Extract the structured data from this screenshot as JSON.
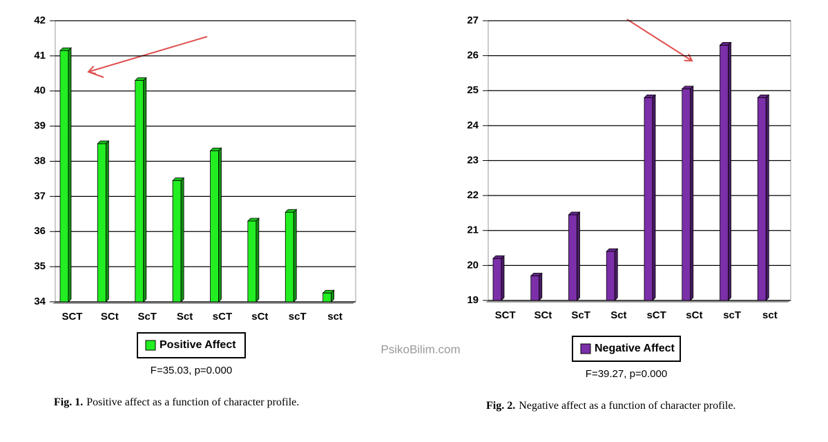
{
  "chart_data": [
    {
      "type": "bar",
      "categories": [
        "SCT",
        "SCt",
        "ScT",
        "Sct",
        "sCT",
        "sCt",
        "scT",
        "sct"
      ],
      "series": [
        {
          "name": "Positive Affect",
          "color": "#22ee22",
          "values": [
            41.15,
            38.5,
            40.3,
            37.45,
            38.3,
            36.3,
            36.55,
            34.25
          ]
        }
      ],
      "ylim": [
        34,
        42
      ],
      "yticks": [
        34,
        35,
        36,
        37,
        38,
        39,
        40,
        41,
        42
      ],
      "grid": true,
      "note": "F=35.03, p=0.000",
      "caption_label": "Fig. 1.",
      "caption": "Positive affect as a function of character profile."
    },
    {
      "type": "bar",
      "categories": [
        "SCT",
        "SCt",
        "ScT",
        "Sct",
        "sCT",
        "sCt",
        "scT",
        "sct"
      ],
      "series": [
        {
          "name": "Negative Affect",
          "color": "#7b2fa8",
          "values": [
            20.2,
            19.7,
            21.45,
            20.4,
            24.8,
            25.05,
            26.3,
            24.8
          ]
        }
      ],
      "ylim": [
        19,
        27
      ],
      "yticks": [
        19,
        20,
        21,
        22,
        23,
        24,
        25,
        26,
        27
      ],
      "grid": true,
      "note": "F=39.27, p=0.000",
      "caption_label": "Fig. 2.",
      "caption": "Negative affect as a function of character profile."
    }
  ],
  "watermark": "PsikoBilim.com"
}
